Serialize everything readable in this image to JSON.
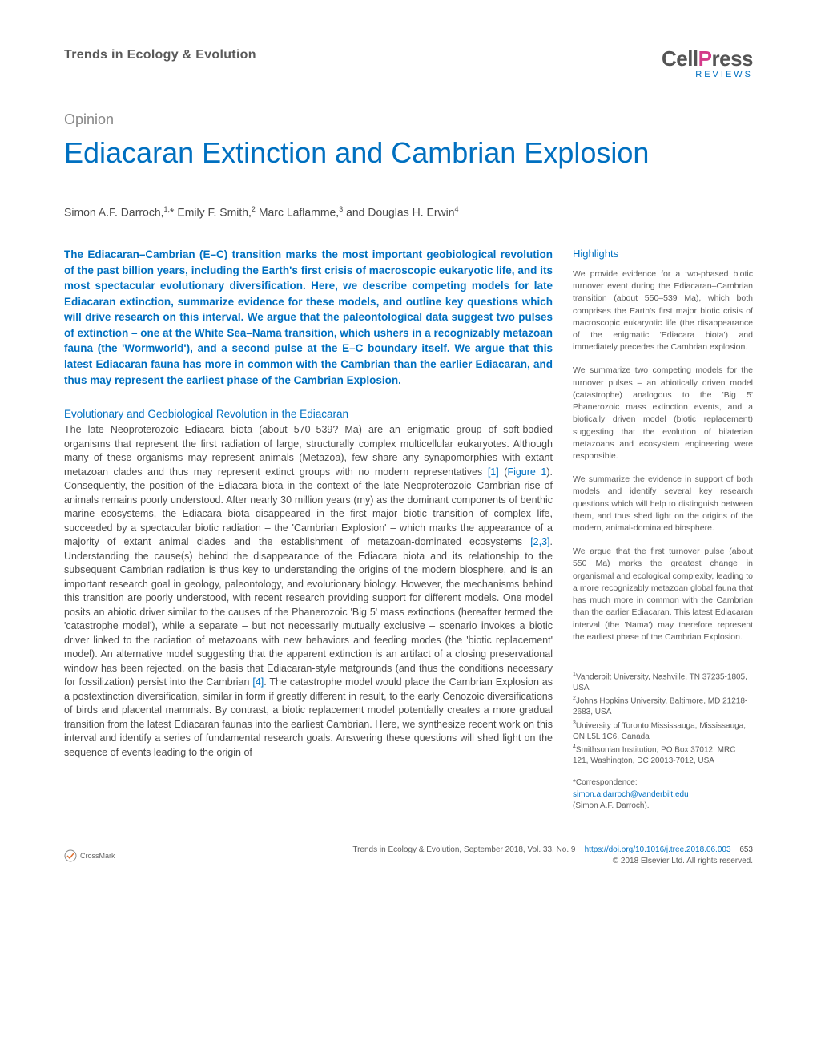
{
  "journal": "Trends in Ecology & Evolution",
  "publisher": {
    "cell": "Cell",
    "p": "P",
    "ress": "ress",
    "sub": "REVIEWS"
  },
  "article_type": "Opinion",
  "title": "Ediacaran Extinction and Cambrian Explosion",
  "authors_html": "Simon A.F. Darroch,<sup>1,</sup>* Emily F. Smith,<sup>2</sup> Marc Laflamme,<sup>3</sup> and Douglas H. Erwin<sup>4</sup>",
  "abstract": "The Ediacaran–Cambrian (E–C) transition marks the most important geobiological revolution of the past billion years, including the Earth's first crisis of macroscopic eukaryotic life, and its most spectacular evolutionary diversification. Here, we describe competing models for late Ediacaran extinction, summarize evidence for these models, and outline key questions which will drive research on this interval. We argue that the paleontological data suggest two pulses of extinction – one at the White Sea–Nama transition, which ushers in a recognizably metazoan fauna (the 'Wormworld'), and a second pulse at the E–C boundary itself. We argue that this latest Ediacaran fauna has more in common with the Cambrian than the earlier Ediacaran, and thus may represent the earliest phase of the Cambrian Explosion.",
  "section_heading": "Evolutionary and Geobiological Revolution in the Ediacaran",
  "body_html": "The late Neoproterozoic Ediacara biota (about 570–539? Ma) are an enigmatic group of soft-bodied organisms that represent the first radiation of large, structurally complex multicellular eukaryotes. Although many of these organisms may represent animals (Metazoa), few share any synapomorphies with extant metazoan clades and thus may represent extinct groups with no modern representatives <span class=\"ref\">[1]</span> (<span class=\"ref\">Figure 1</span>). Consequently, the position of the Ediacara biota in the context of the late Neoproterozoic–Cambrian rise of animals remains poorly understood. After nearly 30 million years (my) as the dominant components of benthic marine ecosystems, the Ediacara biota disappeared in the first major biotic transition of complex life, succeeded by a spectacular biotic radiation – the 'Cambrian Explosion' – which marks the appearance of a majority of extant animal clades and the establishment of metazoan-dominated ecosystems <span class=\"ref\">[2,3]</span>. Understanding the cause(s) behind the disappearance of the Ediacara biota and its relationship to the subsequent Cambrian radiation is thus key to understanding the origins of the modern biosphere, and is an important research goal in geology, paleontology, and evolutionary biology. However, the mechanisms behind this transition are poorly understood, with recent research providing support for different models. One model posits an abiotic driver similar to the causes of the Phanerozoic 'Big 5' mass extinctions (hereafter termed the 'catastrophe model'), while a separate – but not necessarily mutually exclusive – scenario invokes a biotic driver linked to the radiation of metazoans with new behaviors and feeding modes (the 'biotic replacement' model). An alternative model suggesting that the apparent extinction is an artifact of a closing preservational window has been rejected, on the basis that Ediacaran-style matgrounds (and thus the conditions necessary for fossilization) persist into the Cambrian <span class=\"ref\">[4]</span>. The catastrophe model would place the Cambrian Explosion as a postextinction diversification, similar in form if greatly different in result, to the early Cenozoic diversifications of birds and placental mammals. By contrast, a biotic replacement model potentially creates a more gradual transition from the latest Ediacaran faunas into the earliest Cambrian. Here, we synthesize recent work on this interval and identify a series of fundamental research goals. Answering these questions will shed light on the sequence of events leading to the origin of",
  "highlights_heading": "Highlights",
  "highlights": [
    "We provide evidence for a two-phased biotic turnover event during the Ediacaran–Cambrian transition (about 550–539 Ma), which both comprises the Earth's first major biotic crisis of macroscopic eukaryotic life (the disappearance of the enigmatic 'Ediacara biota') and immediately precedes the Cambrian explosion.",
    "We summarize two competing models for the turnover pulses – an abiotically driven model (catastrophe) analogous to the 'Big 5' Phanerozoic mass extinction events, and a biotically driven model (biotic replacement) suggesting that the evolution of bilaterian metazoans and ecosystem engineering were responsible.",
    "We summarize the evidence in support of both models and identify several key research questions which will help to distinguish between them, and thus shed light on the origins of the modern, animal-dominated biosphere.",
    "We argue that the first turnover pulse (about 550 Ma) marks the greatest change in organismal and ecological complexity, leading to a more recognizably metazoan global fauna that has much more in common with the Cambrian than the earlier Ediacaran. This latest Ediacaran interval (the 'Nama') may therefore represent the earliest phase of the Cambrian Explosion."
  ],
  "affiliations": [
    "<sup>1</sup>Vanderbilt University, Nashville, TN 37235-1805, USA",
    "<sup>2</sup>Johns Hopkins University, Baltimore, MD 21218-2683, USA",
    "<sup>3</sup>University of Toronto Mississauga, Mississauga, ON L5L 1C6, Canada",
    "<sup>4</sup>Smithsonian Institution, PO Box 37012, MRC 121, Washington, DC 20013-7012, USA"
  ],
  "correspondence_label": "*Correspondence:",
  "correspondence_email": "simon.a.darroch@vanderbilt.edu",
  "correspondence_name": "(Simon A.F. Darroch).",
  "crossmark": "CrossMark",
  "footer": {
    "citation": "Trends in Ecology & Evolution, September 2018, Vol. 33, No. 9",
    "doi": "https://doi.org/10.1016/j.tree.2018.06.003",
    "page": "653",
    "copyright": "© 2018 Elsevier Ltd. All rights reserved."
  },
  "colors": {
    "link": "#0070c0",
    "accent": "#d43a8a",
    "text": "#4a4a4a",
    "muted": "#888"
  }
}
